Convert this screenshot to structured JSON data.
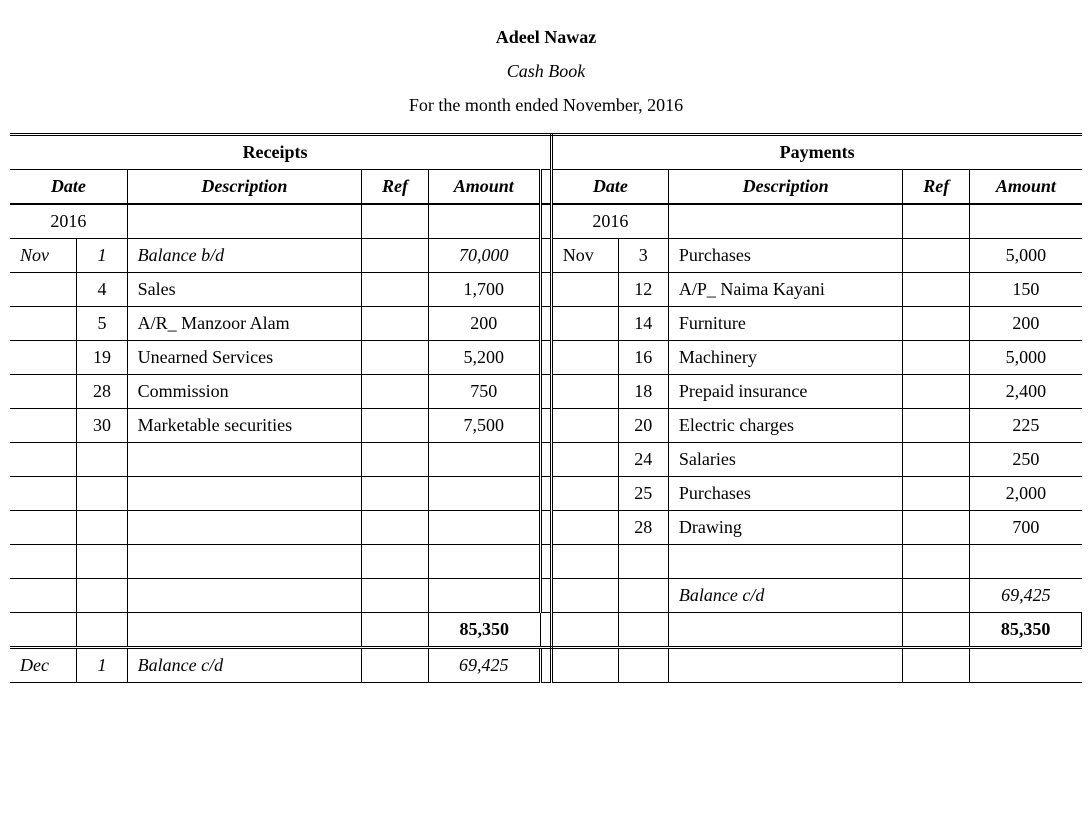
{
  "header": {
    "title": "Adeel Nawaz",
    "subtitle": "Cash Book",
    "period": "For the month ended November, 2016"
  },
  "sections": {
    "left": "Receipts",
    "right": "Payments"
  },
  "columns": {
    "date": "Date",
    "description": "Description",
    "ref": "Ref",
    "amount": "Amount"
  },
  "year_left": "2016",
  "year_right": "2016",
  "receipts": [
    {
      "month": "Nov",
      "day": "1",
      "desc": "Balance b/d",
      "amount": "70,000",
      "italic": true
    },
    {
      "month": "",
      "day": "4",
      "desc": "Sales",
      "amount": "1,700"
    },
    {
      "month": "",
      "day": "5",
      "desc": "A/R_ Manzoor Alam",
      "amount": "200"
    },
    {
      "month": "",
      "day": "19",
      "desc": "Unearned Services",
      "amount": "5,200"
    },
    {
      "month": "",
      "day": "28",
      "desc": "Commission",
      "amount": "750"
    },
    {
      "month": "",
      "day": "30",
      "desc": "Marketable securities",
      "amount": "7,500"
    }
  ],
  "payments": [
    {
      "month": "Nov",
      "day": "3",
      "desc": "Purchases",
      "amount": "5,000"
    },
    {
      "month": "",
      "day": "12",
      "desc": "A/P_ Naima Kayani",
      "amount": "150"
    },
    {
      "month": "",
      "day": "14",
      "desc": "Furniture",
      "amount": "200"
    },
    {
      "month": "",
      "day": "16",
      "desc": "Machinery",
      "amount": "5,000"
    },
    {
      "month": "",
      "day": "18",
      "desc": "Prepaid insurance",
      "amount": "2,400"
    },
    {
      "month": "",
      "day": "20",
      "desc": "Electric charges",
      "amount": "225"
    },
    {
      "month": "",
      "day": "24",
      "desc": "Salaries",
      "amount": "250"
    },
    {
      "month": "",
      "day": "25",
      "desc": "Purchases",
      "amount": "2,000"
    },
    {
      "month": "",
      "day": "28",
      "desc": "Drawing",
      "amount": "700"
    }
  ],
  "balance_cd": {
    "desc": "Balance c/d",
    "amount": "69,425"
  },
  "totals": {
    "left": "85,350",
    "right": "85,350"
  },
  "closing": {
    "month": "Dec",
    "day": "1",
    "desc": "Balance c/d",
    "amount": "69,425"
  },
  "style": {
    "fontsize_body": 18,
    "color_text": "#000000",
    "color_bg": "#ffffff",
    "rule_thin": 1,
    "rule_thick": 2.5,
    "rule_double": "3px double"
  }
}
